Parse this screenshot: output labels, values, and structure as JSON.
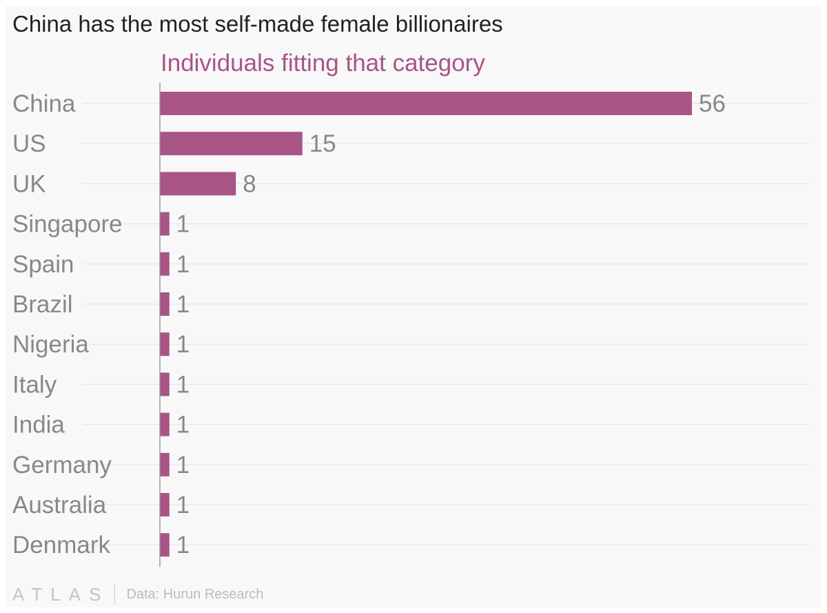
{
  "title": "China has the most self-made female billionaires",
  "colors": {
    "bar": "#a85585",
    "series_label": "#a85585",
    "label": "#888888",
    "grid": "#e6e6e6",
    "axis": "#999999"
  },
  "footer": {
    "logo": "ATLAS",
    "source": "Data: Hurun Research"
  },
  "chart_data": {
    "type": "bar",
    "orientation": "horizontal",
    "title": "China has the most self-made female billionaires",
    "xlabel": "",
    "ylabel": "",
    "xlim": [
      0,
      56
    ],
    "grid": true,
    "legend": "top",
    "categories": [
      "China",
      "US",
      "UK",
      "Singapore",
      "Spain",
      "Brazil",
      "Nigeria",
      "Italy",
      "India",
      "Germany",
      "Australia",
      "Denmark"
    ],
    "series": [
      {
        "name": "Individuals fitting that category",
        "values": [
          56,
          15,
          8,
          1,
          1,
          1,
          1,
          1,
          1,
          1,
          1,
          1
        ]
      }
    ]
  }
}
